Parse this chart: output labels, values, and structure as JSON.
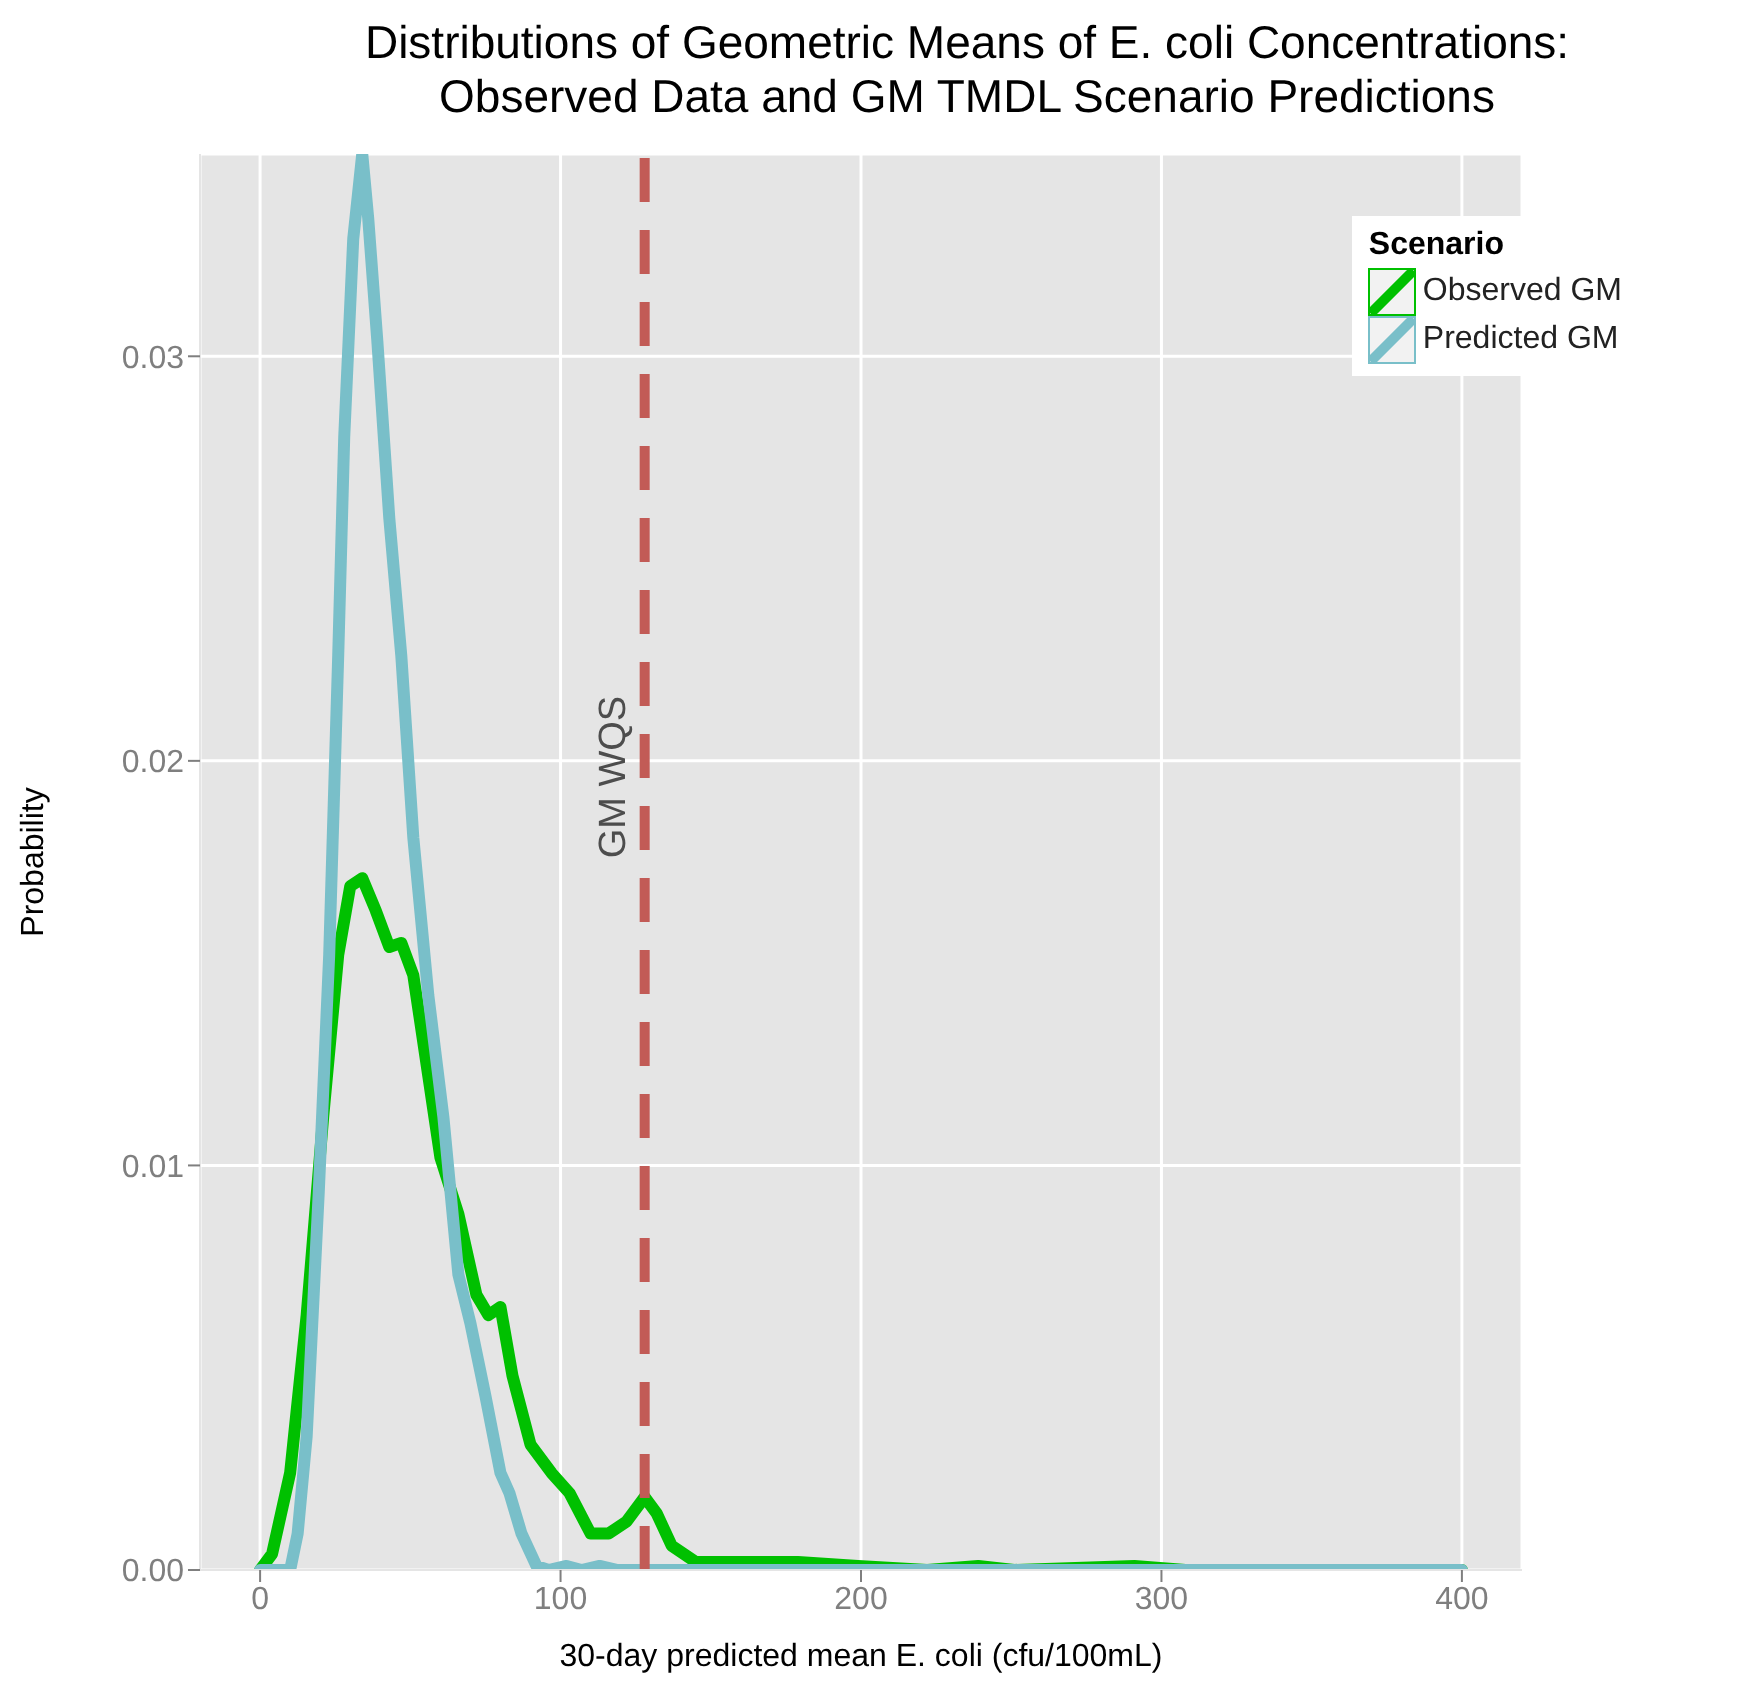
{
  "chart_data": {
    "type": "line",
    "title": "Distributions of Geometric Means of E. coli Concentrations:\nObserved Data and GM TMDL Scenario Predictions",
    "xlabel": "30-day predicted mean E. coli (cfu/100mL)",
    "ylabel": "Probability",
    "legend_title": "Scenario",
    "legend": "top right",
    "grid": true,
    "line_style": "solid",
    "marker": "none",
    "xlim": [
      -20,
      420
    ],
    "xticks": [
      0,
      100,
      200,
      300,
      400
    ],
    "ylim": [
      0,
      0.035
    ],
    "yticks": [
      {
        "value": 0,
        "label": "0.00"
      },
      {
        "value": 0.01,
        "label": "0.01"
      },
      {
        "value": 0.02,
        "label": "0.02"
      },
      {
        "value": 0.03,
        "label": "0.03"
      }
    ],
    "ref_lines": [
      {
        "axis": "x",
        "value": 128,
        "label": "GM WQS",
        "color": "#c25b56",
        "line_style": "dashed"
      }
    ],
    "series": [
      {
        "name": "Observed GM",
        "color": "#00c000",
        "x": [
          0,
          4,
          10,
          15.5,
          21,
          26,
          30,
          34,
          38.5,
          43,
          47,
          51,
          56,
          60,
          66,
          72,
          76,
          80,
          84,
          90,
          97,
          103,
          110,
          116,
          122,
          128,
          132,
          137,
          145,
          159,
          179,
          199,
          222,
          239,
          251,
          291,
          308,
          400
        ],
        "values": [
          0,
          0.0004,
          0.0024,
          0.0063,
          0.0112,
          0.0152,
          0.0169,
          0.0171,
          0.0163,
          0.0154,
          0.0155,
          0.0147,
          0.0122,
          0.0102,
          0.0088,
          0.0068,
          0.0063,
          0.0065,
          0.0048,
          0.0031,
          0.0024,
          0.0019,
          0.0009,
          0.0009,
          0.0012,
          0.0018,
          0.0014,
          0.0006,
          0.0002,
          0.0002,
          0.0002,
          0.0001,
          0,
          0.0001,
          0,
          0.0001,
          0,
          0
        ]
      },
      {
        "name": "Predicted GM",
        "color": "#79bfc9",
        "x": [
          0,
          10,
          12.5,
          15.5,
          19.5,
          23,
          26,
          28,
          31,
          34,
          36,
          39,
          43,
          47,
          51,
          56,
          61,
          66,
          70,
          75,
          80,
          83,
          87,
          92,
          96,
          102,
          107,
          113,
          119,
          400
        ],
        "values": [
          0,
          0,
          0.0009,
          0.0033,
          0.0093,
          0.0152,
          0.0226,
          0.028,
          0.0329,
          0.035,
          0.0334,
          0.0304,
          0.026,
          0.0226,
          0.0181,
          0.0142,
          0.0112,
          0.0073,
          0.0061,
          0.0043,
          0.0024,
          0.0019,
          0.0009,
          0.0001,
          0,
          0.0001,
          0,
          0.0001,
          0,
          0
        ]
      }
    ]
  }
}
